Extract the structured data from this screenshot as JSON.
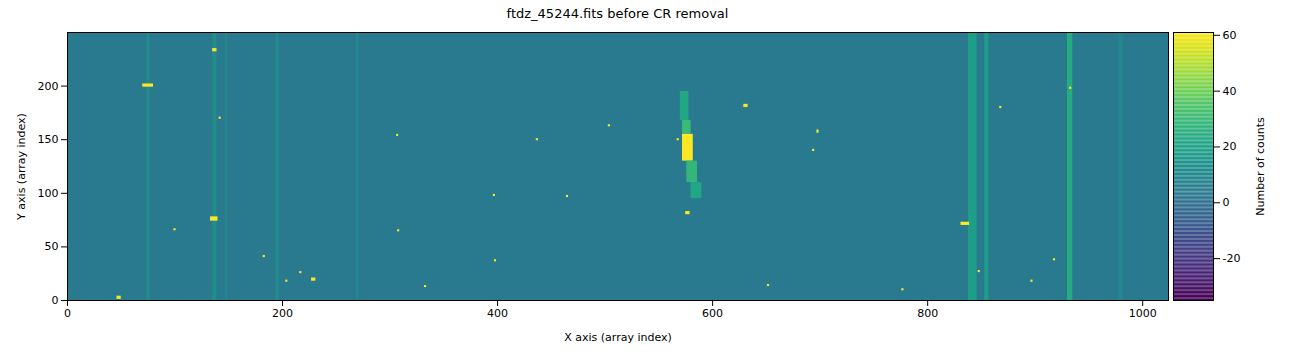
{
  "chart_data": {
    "type": "heatmap",
    "title": "ftdz_45244.fits before CR removal",
    "x_label": "X axis (array index)",
    "y_label": "Y axis (array index)",
    "xlim": [
      0,
      1024
    ],
    "xticks": [
      0,
      200,
      400,
      600,
      800,
      1000
    ],
    "ylim": [
      0,
      250
    ],
    "yticks": [
      0,
      50,
      100,
      150,
      200
    ],
    "colorbar": {
      "label": "Number of counts",
      "lim": [
        -35,
        61
      ],
      "ticks": [
        -20,
        0,
        20,
        40,
        60
      ]
    },
    "background": 4,
    "lines": [
      {
        "x1": 74,
        "x2": 77,
        "value": 10
      },
      {
        "x1": 135,
        "x2": 139,
        "value": 12
      },
      {
        "x1": 147,
        "x2": 149,
        "value": 9
      },
      {
        "x1": 194,
        "x2": 197,
        "value": 11
      },
      {
        "x1": 269,
        "x2": 271,
        "value": 10
      },
      {
        "x1": 838,
        "x2": 846,
        "value": 18
      },
      {
        "x1": 853,
        "x2": 857,
        "value": 17
      },
      {
        "x1": 930,
        "x2": 935,
        "value": 24
      },
      {
        "x1": 978,
        "x2": 982,
        "value": 9
      }
    ],
    "spots": [
      {
        "x1": 570,
        "x2": 578,
        "y1": 168,
        "y2": 195,
        "value": 22
      },
      {
        "x1": 572,
        "x2": 580,
        "y1": 155,
        "y2": 168,
        "value": 30
      },
      {
        "x1": 572,
        "x2": 582,
        "y1": 130,
        "y2": 155,
        "value": 61
      },
      {
        "x1": 576,
        "x2": 586,
        "y1": 110,
        "y2": 130,
        "value": 28
      },
      {
        "x1": 580,
        "x2": 590,
        "y1": 95,
        "y2": 110,
        "value": 22
      },
      {
        "x1": 70,
        "x2": 80,
        "y1": 199,
        "y2": 202,
        "value": 61
      },
      {
        "x1": 135,
        "x2": 139,
        "y1": 232,
        "y2": 235,
        "value": 61
      },
      {
        "x1": 133,
        "x2": 140,
        "y1": 74,
        "y2": 78,
        "value": 61
      },
      {
        "x1": 141,
        "x2": 143,
        "y1": 169,
        "y2": 171,
        "value": 61
      },
      {
        "x1": 99,
        "x2": 101,
        "y1": 65,
        "y2": 67,
        "value": 61
      },
      {
        "x1": 182,
        "x2": 184,
        "y1": 40,
        "y2": 42,
        "value": 61
      },
      {
        "x1": 203,
        "x2": 205,
        "y1": 17,
        "y2": 19,
        "value": 61
      },
      {
        "x1": 216,
        "x2": 218,
        "y1": 25,
        "y2": 27,
        "value": 61
      },
      {
        "x1": 227,
        "x2": 231,
        "y1": 18,
        "y2": 21,
        "value": 61
      },
      {
        "x1": 46,
        "x2": 50,
        "y1": 1,
        "y2": 4,
        "value": 61
      },
      {
        "x1": 306,
        "x2": 308,
        "y1": 153,
        "y2": 155,
        "value": 61
      },
      {
        "x1": 307,
        "x2": 309,
        "y1": 64,
        "y2": 66,
        "value": 61
      },
      {
        "x1": 332,
        "x2": 334,
        "y1": 12,
        "y2": 14,
        "value": 61
      },
      {
        "x1": 396,
        "x2": 398,
        "y1": 97,
        "y2": 99,
        "value": 61
      },
      {
        "x1": 397,
        "x2": 399,
        "y1": 36,
        "y2": 38,
        "value": 61
      },
      {
        "x1": 436,
        "x2": 438,
        "y1": 149,
        "y2": 151,
        "value": 61
      },
      {
        "x1": 464,
        "x2": 466,
        "y1": 96,
        "y2": 98,
        "value": 61
      },
      {
        "x1": 503,
        "x2": 505,
        "y1": 162,
        "y2": 164,
        "value": 61
      },
      {
        "x1": 567,
        "x2": 569,
        "y1": 149,
        "y2": 151,
        "value": 61
      },
      {
        "x1": 575,
        "x2": 579,
        "y1": 80,
        "y2": 83,
        "value": 61
      },
      {
        "x1": 629,
        "x2": 633,
        "y1": 180,
        "y2": 183,
        "value": 61
      },
      {
        "x1": 651,
        "x2": 653,
        "y1": 13,
        "y2": 15,
        "value": 61
      },
      {
        "x1": 693,
        "x2": 695,
        "y1": 139,
        "y2": 141,
        "value": 61
      },
      {
        "x1": 697,
        "x2": 699,
        "y1": 156,
        "y2": 159,
        "value": 61
      },
      {
        "x1": 776,
        "x2": 778,
        "y1": 9,
        "y2": 11,
        "value": 61
      },
      {
        "x1": 831,
        "x2": 839,
        "y1": 70,
        "y2": 73,
        "value": 61
      },
      {
        "x1": 847,
        "x2": 849,
        "y1": 26,
        "y2": 28,
        "value": 61
      },
      {
        "x1": 867,
        "x2": 869,
        "y1": 179,
        "y2": 181,
        "value": 61
      },
      {
        "x1": 896,
        "x2": 898,
        "y1": 17,
        "y2": 19,
        "value": 61
      },
      {
        "x1": 917,
        "x2": 919,
        "y1": 37,
        "y2": 39,
        "value": 61
      },
      {
        "x1": 932,
        "x2": 934,
        "y1": 197,
        "y2": 199,
        "value": 61
      }
    ]
  }
}
